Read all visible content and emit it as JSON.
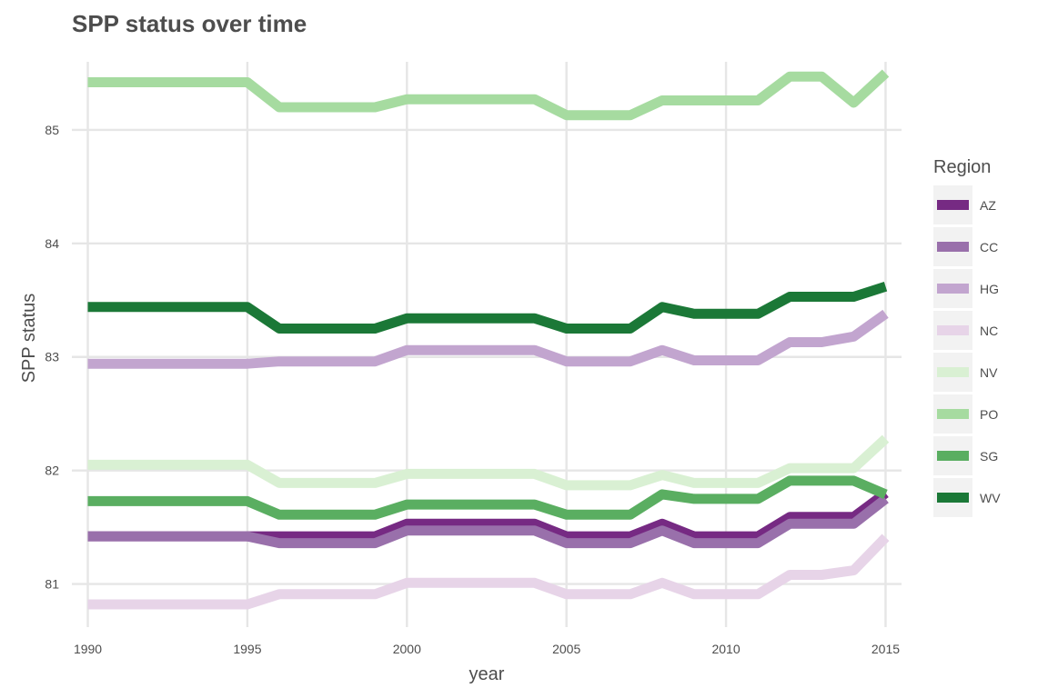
{
  "chart_data": {
    "type": "line",
    "title": "SPP status over time",
    "xlabel": "year",
    "ylabel": "SPP status",
    "xlim": [
      1989.5,
      2015.5
    ],
    "ylim": [
      80.62,
      85.6
    ],
    "x_ticks": [
      1990,
      1995,
      2000,
      2005,
      2010,
      2015
    ],
    "y_ticks": [
      81,
      82,
      83,
      84,
      85
    ],
    "grid": true,
    "legend": {
      "title": "Region",
      "placement": "right"
    },
    "x": [
      1990,
      1991,
      1992,
      1993,
      1994,
      1995,
      1996,
      1997,
      1998,
      1999,
      2000,
      2001,
      2002,
      2003,
      2004,
      2005,
      2006,
      2007,
      2008,
      2009,
      2010,
      2011,
      2012,
      2013,
      2014,
      2015
    ],
    "series": [
      {
        "name": "AZ",
        "color": "#762a83",
        "values": [
          81.42,
          81.42,
          81.42,
          81.42,
          81.42,
          81.42,
          81.42,
          81.42,
          81.42,
          81.42,
          81.53,
          81.53,
          81.53,
          81.53,
          81.53,
          81.42,
          81.42,
          81.42,
          81.53,
          81.42,
          81.42,
          81.42,
          81.59,
          81.59,
          81.59,
          81.8
        ]
      },
      {
        "name": "CC",
        "color": "#9970ab",
        "values": [
          81.42,
          81.42,
          81.42,
          81.42,
          81.42,
          81.42,
          81.36,
          81.36,
          81.36,
          81.36,
          81.47,
          81.47,
          81.47,
          81.47,
          81.47,
          81.36,
          81.36,
          81.36,
          81.47,
          81.36,
          81.36,
          81.36,
          81.53,
          81.53,
          81.53,
          81.75
        ]
      },
      {
        "name": "HG",
        "color": "#c2a5cf",
        "values": [
          82.94,
          82.94,
          82.94,
          82.94,
          82.94,
          82.94,
          82.96,
          82.96,
          82.96,
          82.96,
          83.06,
          83.06,
          83.06,
          83.06,
          83.06,
          82.96,
          82.96,
          82.96,
          83.06,
          82.97,
          82.97,
          82.97,
          83.13,
          83.13,
          83.18,
          83.38
        ]
      },
      {
        "name": "NC",
        "color": "#e7d4e8",
        "values": [
          80.82,
          80.82,
          80.82,
          80.82,
          80.82,
          80.82,
          80.91,
          80.91,
          80.91,
          80.91,
          81.01,
          81.01,
          81.01,
          81.01,
          81.01,
          80.91,
          80.91,
          80.91,
          81.01,
          80.91,
          80.91,
          80.91,
          81.08,
          81.08,
          81.12,
          81.41
        ]
      },
      {
        "name": "NV",
        "color": "#d9f0d3",
        "values": [
          82.05,
          82.05,
          82.05,
          82.05,
          82.05,
          82.05,
          81.89,
          81.89,
          81.89,
          81.89,
          81.97,
          81.97,
          81.97,
          81.97,
          81.97,
          81.87,
          81.87,
          81.87,
          81.96,
          81.89,
          81.89,
          81.89,
          82.02,
          82.02,
          82.02,
          82.28
        ]
      },
      {
        "name": "PO",
        "color": "#a6dba0",
        "values": [
          85.42,
          85.42,
          85.42,
          85.42,
          85.42,
          85.42,
          85.2,
          85.2,
          85.2,
          85.2,
          85.27,
          85.27,
          85.27,
          85.27,
          85.27,
          85.13,
          85.13,
          85.13,
          85.26,
          85.26,
          85.26,
          85.26,
          85.47,
          85.47,
          85.24,
          85.5
        ]
      },
      {
        "name": "SG",
        "color": "#5aae61",
        "values": [
          81.73,
          81.73,
          81.73,
          81.73,
          81.73,
          81.73,
          81.61,
          81.61,
          81.61,
          81.61,
          81.7,
          81.7,
          81.7,
          81.7,
          81.7,
          81.61,
          81.61,
          81.61,
          81.79,
          81.75,
          81.75,
          81.75,
          81.91,
          81.91,
          81.91,
          81.79
        ]
      },
      {
        "name": "WV",
        "color": "#1b7837",
        "values": [
          83.44,
          83.44,
          83.44,
          83.44,
          83.44,
          83.44,
          83.25,
          83.25,
          83.25,
          83.25,
          83.34,
          83.34,
          83.34,
          83.34,
          83.34,
          83.25,
          83.25,
          83.25,
          83.44,
          83.38,
          83.38,
          83.38,
          83.53,
          83.53,
          83.53,
          83.62
        ]
      }
    ]
  }
}
